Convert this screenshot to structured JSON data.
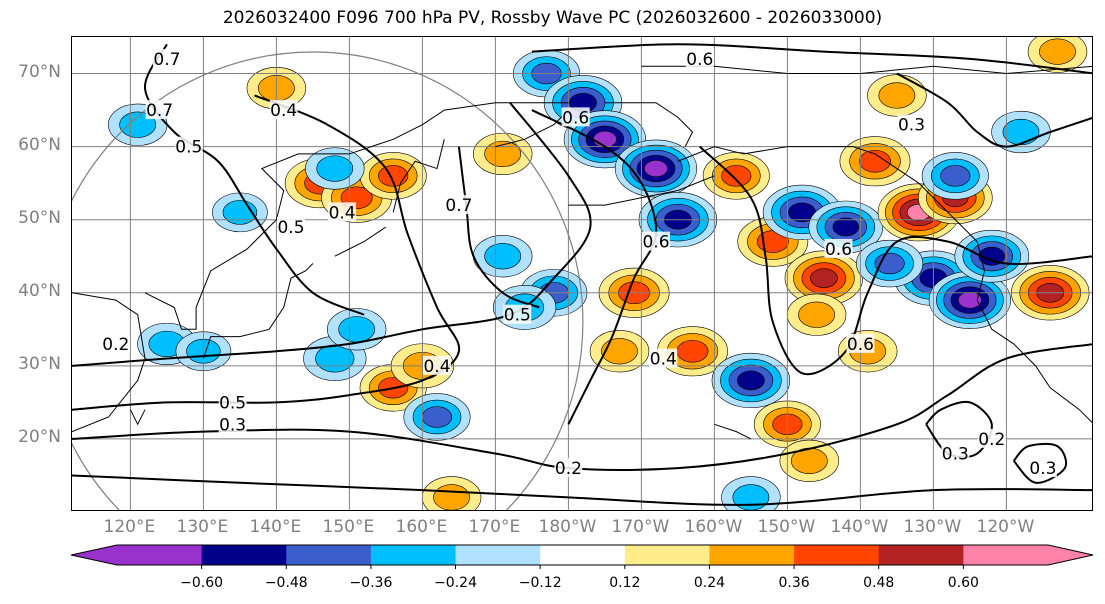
{
  "title": "2026032400 F096 700 hPa PV, Rossby Wave PC (2026032600 - 2026033000)",
  "map": {
    "projection": "cylindrical",
    "lon_range_deg_east": [
      112,
      252
    ],
    "lat_range": [
      10,
      75
    ],
    "lat_labels": [
      "70°N",
      "60°N",
      "50°N",
      "40°N",
      "30°N",
      "20°N"
    ],
    "lat_values": [
      70,
      60,
      50,
      40,
      30,
      20
    ],
    "lon_labels": [
      "120°E",
      "130°E",
      "140°E",
      "150°E",
      "160°E",
      "170°E",
      "180°W",
      "170°W",
      "160°W",
      "150°W",
      "140°W",
      "130°W",
      "120°W"
    ],
    "lon_values_deg_east": [
      120,
      130,
      140,
      150,
      160,
      170,
      180,
      190,
      200,
      210,
      220,
      230,
      240
    ],
    "contour_labels": [
      {
        "text": "0.6",
        "lon": 198,
        "lat": 72
      },
      {
        "text": "0.6",
        "lon": 181,
        "lat": 64
      },
      {
        "text": "0.6",
        "lon": 192,
        "lat": 47
      },
      {
        "text": "0.6",
        "lon": 217,
        "lat": 46
      },
      {
        "text": "0.6",
        "lon": 220,
        "lat": 33
      },
      {
        "text": "0.7",
        "lon": 125,
        "lat": 72
      },
      {
        "text": "0.7",
        "lon": 124,
        "lat": 65
      },
      {
        "text": "0.5",
        "lon": 128,
        "lat": 60
      },
      {
        "text": "0.4",
        "lon": 141,
        "lat": 65
      },
      {
        "text": "0.5",
        "lon": 142,
        "lat": 49
      },
      {
        "text": "0.4",
        "lon": 149,
        "lat": 51
      },
      {
        "text": "0.7",
        "lon": 165,
        "lat": 52
      },
      {
        "text": "0.5",
        "lon": 173,
        "lat": 37
      },
      {
        "text": "0.4",
        "lon": 162,
        "lat": 30
      },
      {
        "text": "0.4",
        "lon": 193,
        "lat": 31
      },
      {
        "text": "0.5",
        "lon": 134,
        "lat": 25
      },
      {
        "text": "0.3",
        "lon": 134,
        "lat": 22
      },
      {
        "text": "0.2",
        "lon": 118,
        "lat": 33
      },
      {
        "text": "0.2",
        "lon": 180,
        "lat": 16
      },
      {
        "text": "0.3",
        "lon": 227,
        "lat": 63
      },
      {
        "text": "0.3",
        "lon": 233,
        "lat": 18
      },
      {
        "text": "0.2",
        "lon": 238,
        "lat": 20
      },
      {
        "text": "0.3",
        "lon": 245,
        "lat": 16
      }
    ],
    "line_color": "#000000",
    "grid_color": "#808080"
  },
  "colorbar": {
    "ticks": [
      "−0.60",
      "−0.48",
      "−0.36",
      "−0.24",
      "−0.12",
      "0.12",
      "0.24",
      "0.36",
      "0.48",
      "0.60"
    ],
    "bins": [
      {
        "color": "#9932cc"
      },
      {
        "color": "#00008b"
      },
      {
        "color": "#3a5fcd"
      },
      {
        "color": "#00bfff"
      },
      {
        "color": "#b0e2ff"
      },
      {
        "color": "#ffffff"
      },
      {
        "color": "#ffec8b"
      },
      {
        "color": "#ffa500"
      },
      {
        "color": "#ff4500"
      },
      {
        "color": "#b22222"
      },
      {
        "color": "#ff82ab"
      }
    ],
    "extend_min_color": "#9932cc",
    "extend_max_color": "#ff82ab"
  },
  "anomalies": [
    {
      "lon": 146,
      "lat": 55,
      "v": 0.45
    },
    {
      "lon": 151,
      "lat": 53,
      "v": 0.45
    },
    {
      "lon": 156,
      "lat": 56,
      "v": 0.4
    },
    {
      "lon": 171,
      "lat": 59,
      "v": 0.3
    },
    {
      "lon": 177,
      "lat": 70,
      "v": -0.4
    },
    {
      "lon": 182,
      "lat": 66,
      "v": -0.55
    },
    {
      "lon": 185,
      "lat": 61,
      "v": -0.6
    },
    {
      "lon": 192,
      "lat": 57,
      "v": -0.6
    },
    {
      "lon": 195,
      "lat": 50,
      "v": -0.55
    },
    {
      "lon": 203,
      "lat": 56,
      "v": 0.4
    },
    {
      "lon": 208,
      "lat": 47,
      "v": 0.45
    },
    {
      "lon": 215,
      "lat": 42,
      "v": 0.55
    },
    {
      "lon": 212,
      "lat": 51,
      "v": -0.55
    },
    {
      "lon": 218,
      "lat": 49,
      "v": -0.5
    },
    {
      "lon": 222,
      "lat": 58,
      "v": 0.45
    },
    {
      "lon": 228,
      "lat": 51,
      "v": 0.6
    },
    {
      "lon": 233,
      "lat": 53,
      "v": 0.5
    },
    {
      "lon": 230,
      "lat": 42,
      "v": -0.55
    },
    {
      "lon": 235,
      "lat": 39,
      "v": -0.6
    },
    {
      "lon": 238,
      "lat": 45,
      "v": -0.5
    },
    {
      "lon": 246,
      "lat": 40,
      "v": 0.55
    },
    {
      "lon": 233,
      "lat": 56,
      "v": -0.4
    },
    {
      "lon": 224,
      "lat": 44,
      "v": -0.4
    },
    {
      "lon": 189,
      "lat": 40,
      "v": 0.45
    },
    {
      "lon": 178,
      "lat": 40,
      "v": -0.4
    },
    {
      "lon": 174,
      "lat": 38,
      "v": -0.35
    },
    {
      "lon": 197,
      "lat": 32,
      "v": 0.45
    },
    {
      "lon": 205,
      "lat": 28,
      "v": -0.55
    },
    {
      "lon": 210,
      "lat": 22,
      "v": 0.4
    },
    {
      "lon": 213,
      "lat": 17,
      "v": 0.3
    },
    {
      "lon": 156,
      "lat": 27,
      "v": 0.4
    },
    {
      "lon": 160,
      "lat": 30,
      "v": 0.35
    },
    {
      "lon": 162,
      "lat": 23,
      "v": -0.4
    },
    {
      "lon": 148,
      "lat": 31,
      "v": -0.35
    },
    {
      "lon": 151,
      "lat": 35,
      "v": -0.3
    },
    {
      "lon": 125,
      "lat": 33,
      "v": -0.3
    },
    {
      "lon": 130,
      "lat": 32,
      "v": -0.25
    },
    {
      "lon": 148,
      "lat": 57,
      "v": -0.3
    },
    {
      "lon": 135,
      "lat": 51,
      "v": -0.25
    },
    {
      "lon": 121,
      "lat": 63,
      "v": -0.3
    },
    {
      "lon": 140,
      "lat": 68,
      "v": 0.3
    },
    {
      "lon": 225,
      "lat": 67,
      "v": 0.3
    },
    {
      "lon": 242,
      "lat": 62,
      "v": -0.3
    },
    {
      "lon": 247,
      "lat": 73,
      "v": 0.3
    },
    {
      "lon": 214,
      "lat": 37,
      "v": 0.3
    },
    {
      "lon": 187,
      "lat": 32,
      "v": 0.3
    },
    {
      "lon": 171,
      "lat": 45,
      "v": -0.3
    },
    {
      "lon": 221,
      "lat": 32,
      "v": 0.3
    },
    {
      "lon": 164,
      "lat": 12,
      "v": 0.3
    },
    {
      "lon": 205,
      "lat": 12,
      "v": -0.3
    }
  ],
  "contours": [
    {
      "label": "0.6",
      "pts": [
        [
          175,
          73
        ],
        [
          195,
          74
        ],
        [
          215,
          73
        ],
        [
          235,
          72
        ],
        [
          252,
          70
        ]
      ]
    },
    {
      "label": "0.6",
      "pts": [
        [
          175,
          65
        ],
        [
          185,
          60
        ],
        [
          190,
          55
        ],
        [
          192,
          48
        ],
        [
          189,
          42
        ],
        [
          186,
          34
        ],
        [
          183,
          28
        ],
        [
          180,
          22
        ]
      ]
    },
    {
      "label": "0.6",
      "pts": [
        [
          198,
          60
        ],
        [
          205,
          53
        ],
        [
          207,
          45
        ],
        [
          208,
          36
        ],
        [
          212,
          29
        ],
        [
          218,
          32
        ],
        [
          221,
          40
        ],
        [
          225,
          47
        ],
        [
          232,
          47
        ],
        [
          240,
          44
        ],
        [
          252,
          45
        ]
      ]
    },
    {
      "label": "0.5",
      "pts": [
        [
          172,
          66
        ],
        [
          180,
          56
        ],
        [
          183,
          49
        ],
        [
          178,
          42
        ],
        [
          172,
          37
        ],
        [
          160,
          35
        ],
        [
          150,
          33
        ],
        [
          140,
          32
        ],
        [
          125,
          31
        ],
        [
          112,
          30
        ]
      ]
    },
    {
      "label": "0.4",
      "pts": [
        [
          137,
          67
        ],
        [
          147,
          63
        ],
        [
          155,
          57
        ],
        [
          158,
          48
        ],
        [
          162,
          38
        ],
        [
          165,
          32
        ],
        [
          160,
          28
        ],
        [
          150,
          26
        ],
        [
          140,
          25
        ],
        [
          125,
          25
        ],
        [
          112,
          24
        ]
      ]
    },
    {
      "label": "0.3",
      "pts": [
        [
          112,
          20
        ],
        [
          130,
          21
        ],
        [
          150,
          21
        ],
        [
          170,
          18
        ],
        [
          180,
          16
        ],
        [
          195,
          16
        ],
        [
          210,
          18
        ],
        [
          225,
          22
        ],
        [
          232,
          26
        ],
        [
          240,
          31
        ],
        [
          252,
          33
        ]
      ]
    },
    {
      "label": "0.2",
      "pts": [
        [
          112,
          15
        ],
        [
          135,
          14
        ],
        [
          160,
          13
        ],
        [
          180,
          12
        ],
        [
          205,
          11
        ],
        [
          230,
          13
        ],
        [
          252,
          13
        ]
      ]
    },
    {
      "label": "0.7",
      "pts": [
        [
          125,
          74
        ],
        [
          122,
          68
        ],
        [
          126,
          62
        ],
        [
          132,
          58
        ],
        [
          136,
          52
        ],
        [
          140,
          46
        ],
        [
          145,
          40
        ],
        [
          152,
          37
        ]
      ]
    },
    {
      "label": "0.7",
      "pts": [
        [
          165,
          60
        ],
        [
          166,
          52
        ],
        [
          167,
          45
        ],
        [
          171,
          40
        ],
        [
          176,
          38
        ]
      ]
    },
    {
      "label": "0.3",
      "pts": [
        [
          225,
          70
        ],
        [
          232,
          66
        ],
        [
          236,
          62
        ],
        [
          240,
          60
        ],
        [
          246,
          62
        ],
        [
          252,
          64
        ]
      ]
    },
    {
      "label": "0.3",
      "pts": [
        [
          229,
          22
        ],
        [
          232,
          18
        ],
        [
          236,
          18
        ],
        [
          238,
          22
        ],
        [
          235,
          25
        ],
        [
          231,
          24
        ],
        [
          229,
          22
        ]
      ]
    },
    {
      "label": "0.3",
      "pts": [
        [
          241,
          17
        ],
        [
          244,
          14
        ],
        [
          248,
          16
        ],
        [
          247,
          19
        ],
        [
          243,
          19
        ],
        [
          241,
          17
        ]
      ]
    }
  ]
}
